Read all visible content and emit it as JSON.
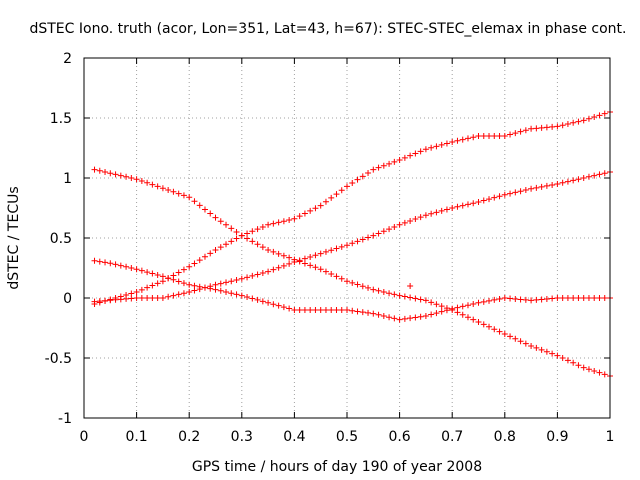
{
  "chart_data": {
    "type": "scatter",
    "title": "dSTEC Iono. truth (acor, Lon=351, Lat=43, h=67): STEC-STEC_elemax in phase cont.",
    "xlabel": "GPS time / hours of day 190 of year 2008",
    "ylabel": "dSTEC  / TECUs",
    "xlim": [
      0,
      1
    ],
    "ylim": [
      -1,
      2
    ],
    "x_ticks": [
      0,
      0.1,
      0.2,
      0.3,
      0.4,
      0.5,
      0.6,
      0.7,
      0.8,
      0.9,
      1
    ],
    "y_ticks": [
      -1,
      -0.5,
      0,
      0.5,
      1,
      1.5,
      2
    ],
    "x_tick_labels": [
      "0",
      "0.1",
      "0.2",
      "0.3",
      "0.4",
      "0.5",
      "0.6",
      "0.7",
      "0.8",
      "0.9",
      "1"
    ],
    "y_tick_labels": [
      "-1",
      "-0.5",
      "0",
      "0.5",
      "1",
      "1.5",
      "2"
    ],
    "grid": true,
    "marker": "plus",
    "marker_color": "#ff0000",
    "series": [
      {
        "x": [
          0.02,
          0.1,
          0.2,
          0.25,
          0.3,
          0.35,
          0.4,
          0.45,
          0.5,
          0.55,
          0.6,
          0.65,
          0.7,
          0.75,
          0.8,
          0.85,
          0.9,
          0.95,
          1.0
        ],
        "y": [
          1.07,
          0.99,
          0.84,
          0.67,
          0.52,
          0.4,
          0.32,
          0.24,
          0.14,
          0.07,
          0.02,
          -0.02,
          -0.1,
          -0.2,
          -0.3,
          -0.4,
          -0.48,
          -0.58,
          -0.65
        ]
      },
      {
        "x": [
          0.02,
          0.1,
          0.15,
          0.2,
          0.25,
          0.3,
          0.35,
          0.4,
          0.45,
          0.5,
          0.55,
          0.6,
          0.65,
          0.7,
          0.75,
          0.8,
          0.85,
          0.9,
          0.95,
          1.0
        ],
        "y": [
          -0.05,
          0.05,
          0.14,
          0.26,
          0.4,
          0.52,
          0.61,
          0.66,
          0.77,
          0.93,
          1.07,
          1.15,
          1.24,
          1.3,
          1.35,
          1.35,
          1.41,
          1.43,
          1.48,
          1.55
        ]
      },
      {
        "x": [
          0.02,
          0.05,
          0.1,
          0.15,
          0.2,
          0.25,
          0.3,
          0.35,
          0.4,
          0.45,
          0.5,
          0.55,
          0.6,
          0.65,
          0.7,
          0.75,
          0.8,
          0.85,
          0.9,
          0.95,
          1.0
        ],
        "y": [
          0.31,
          0.29,
          0.24,
          0.18,
          0.11,
          0.07,
          0.02,
          -0.04,
          -0.1,
          -0.1,
          -0.1,
          -0.13,
          -0.18,
          -0.15,
          -0.09,
          -0.04,
          0.0,
          -0.02,
          0.0,
          0.0,
          0.0
        ]
      },
      {
        "x": [
          0.02,
          0.1,
          0.15,
          0.2,
          0.25,
          0.3,
          0.35,
          0.4,
          0.45,
          0.5,
          0.55,
          0.6,
          0.65,
          0.7,
          0.75,
          0.8,
          0.85,
          0.9,
          0.95,
          1.0
        ],
        "y": [
          -0.03,
          0.0,
          0.0,
          0.05,
          0.11,
          0.16,
          0.22,
          0.3,
          0.37,
          0.44,
          0.52,
          0.61,
          0.69,
          0.75,
          0.8,
          0.86,
          0.91,
          0.95,
          1.0,
          1.05
        ]
      },
      {
        "x": [
          0.62
        ],
        "y": [
          0.1
        ]
      }
    ]
  }
}
